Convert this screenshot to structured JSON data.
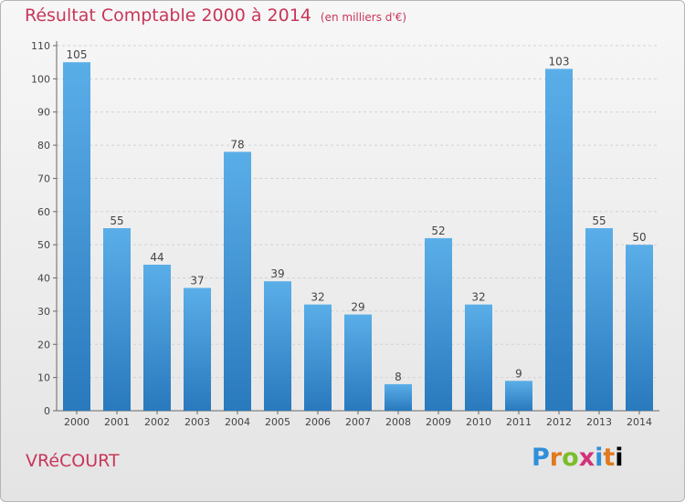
{
  "header": {
    "title": "Résultat Comptable 2000 à 2014",
    "subtitle": "(en milliers d'€)"
  },
  "footer": {
    "commune": "VRéCOURT",
    "logo_text": "Proxiti"
  },
  "colors": {
    "title": "#c8365a",
    "bar_top": "#5aaee8",
    "bar_bottom": "#2979bd",
    "background_top": "#f7f7f7",
    "background_bottom": "#e4e4e4"
  },
  "chart_data": {
    "type": "bar",
    "title": "Résultat Comptable 2000 à 2014",
    "subtitle": "(en milliers d'€)",
    "categories": [
      "2000",
      "2001",
      "2002",
      "2003",
      "2004",
      "2005",
      "2006",
      "2007",
      "2008",
      "2009",
      "2010",
      "2011",
      "2012",
      "2013",
      "2014"
    ],
    "values": [
      105,
      55,
      44,
      37,
      78,
      39,
      32,
      29,
      8,
      52,
      32,
      9,
      103,
      55,
      50
    ],
    "ylim": [
      0,
      110
    ],
    "yticks": [
      0,
      10,
      20,
      30,
      40,
      50,
      60,
      70,
      80,
      90,
      100,
      110
    ],
    "grid": true,
    "data_labels": true,
    "xlabel": "",
    "ylabel": ""
  }
}
